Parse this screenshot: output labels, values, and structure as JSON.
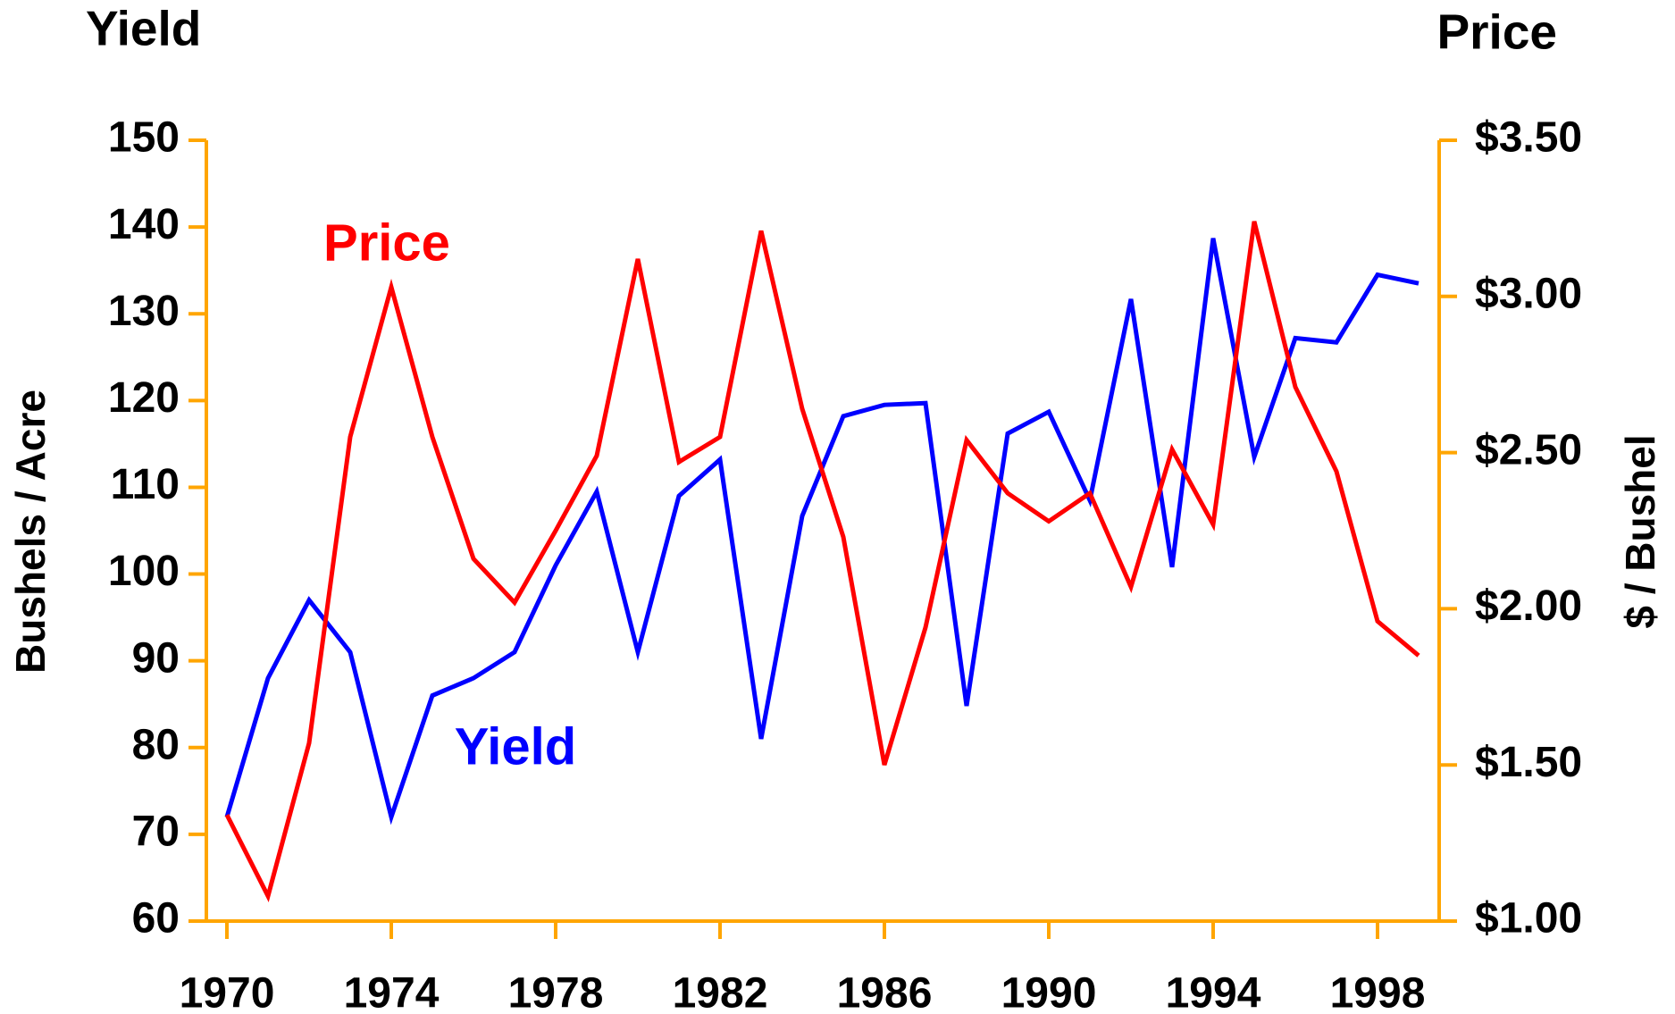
{
  "chart_data": {
    "type": "line",
    "title_left": "Yield",
    "title_right": "Price",
    "ylabel": "Bushels / Acre",
    "y2label": "$ / Bushel",
    "annotations": [
      {
        "text": "Price",
        "color": "#ff0000"
      },
      {
        "text": "Yield",
        "color": "#0000ff"
      }
    ],
    "x": [
      1970,
      1971,
      1972,
      1973,
      1974,
      1975,
      1976,
      1977,
      1978,
      1979,
      1980,
      1981,
      1982,
      1983,
      1984,
      1985,
      1986,
      1987,
      1988,
      1989,
      1990,
      1991,
      1992,
      1993,
      1994,
      1995,
      1996,
      1997,
      1998,
      1999
    ],
    "series": [
      {
        "name": "Yield",
        "color": "#0000ff",
        "axis": "y",
        "values": [
          72,
          88,
          97,
          91,
          72,
          86,
          88,
          91,
          101,
          109.5,
          91,
          109,
          113.2,
          81,
          106.7,
          118.2,
          119.5,
          119.7,
          84.8,
          116.2,
          118.7,
          108.5,
          131.7,
          100.8,
          138.7,
          113.5,
          127.2,
          126.7,
          134.5,
          133.5
        ]
      },
      {
        "name": "Price",
        "color": "#ff0000",
        "axis": "y2",
        "values": [
          1.34,
          1.08,
          1.57,
          2.55,
          3.03,
          2.55,
          2.16,
          2.02,
          2.25,
          2.49,
          3.12,
          2.47,
          2.55,
          3.21,
          2.64,
          2.23,
          1.5,
          1.94,
          2.54,
          2.37,
          2.28,
          2.37,
          2.07,
          2.51,
          2.27,
          3.24,
          2.71,
          2.44,
          1.96,
          1.85
        ]
      }
    ],
    "xlim": [
      1969.5,
      1999.5
    ],
    "xticks": [
      1970,
      1974,
      1978,
      1982,
      1986,
      1990,
      1994,
      1998
    ],
    "ylim": [
      60,
      150
    ],
    "yticks": [
      60,
      70,
      80,
      90,
      100,
      110,
      120,
      130,
      140,
      150
    ],
    "y2lim": [
      1.0,
      3.5
    ],
    "y2ticks": [
      {
        "value": 1.0,
        "label": "$1.00"
      },
      {
        "value": 1.5,
        "label": "$1.50"
      },
      {
        "value": 2.0,
        "label": "$2.00"
      },
      {
        "value": 2.5,
        "label": "$2.50"
      },
      {
        "value": 3.0,
        "label": "$3.00"
      },
      {
        "value": 3.5,
        "label": "$3.50"
      }
    ],
    "axis_color": "#ffa500",
    "grid": false
  }
}
